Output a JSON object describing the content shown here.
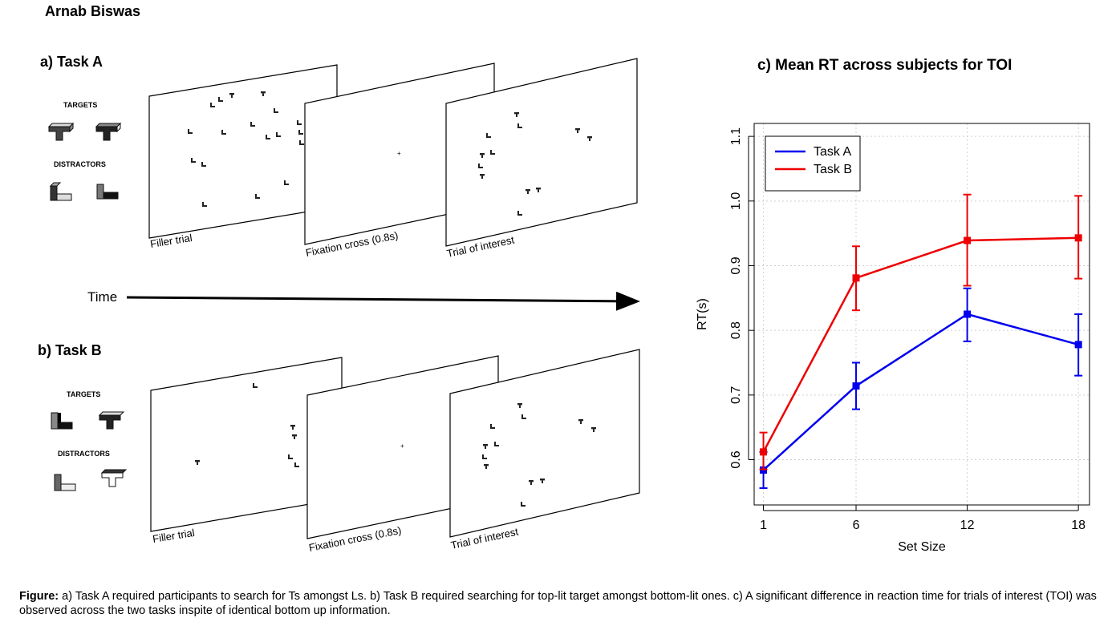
{
  "author": "Arnab Biswas",
  "panel_a": {
    "title": "a) Task A",
    "targets_label": "TARGETS",
    "distractors_label": "DISTRACTORS",
    "screens": [
      "Filler trial",
      "Fixation cross (0.8s)",
      "Trial of interest"
    ]
  },
  "time_label": "Time",
  "panel_b": {
    "title": "b) Task B",
    "targets_label": "TARGETS",
    "distractors_label": "DISTRACTORS",
    "screens": [
      "Filler trial",
      "Fixation cross (0.8s)",
      "Trial of interest"
    ]
  },
  "panel_c": {
    "title": "c) Mean RT across subjects for TOI"
  },
  "caption": {
    "lead": "Figure:",
    "text": " a) Task A required participants to search for Ts amongst Ls. b) Task B required searching for top-lit target amongst bottom-lit ones. c) A significant difference in reaction time for trials of interest (TOI) was observed across the two tasks inspite of identical bottom up information."
  },
  "chart_data": {
    "type": "line",
    "title": "c) Mean RT across subjects for TOI",
    "xlabel": "Set Size",
    "ylabel": "RT(s)",
    "x": [
      1,
      6,
      12,
      18
    ],
    "x_tick_labels": [
      "1",
      "6",
      "12",
      "18"
    ],
    "xlim": [
      0.5,
      18.6
    ],
    "ylim": [
      0.53,
      1.12
    ],
    "y_ticks": [
      0.6,
      0.7,
      0.8,
      0.9,
      1.0,
      1.1
    ],
    "y_tick_labels": [
      "0.6",
      "0.7",
      "0.8",
      "0.9",
      "1.0",
      "1.1"
    ],
    "grid": true,
    "legend_position": "top-left",
    "series": [
      {
        "name": "Task A",
        "color": "#0000ee",
        "values": [
          0.584,
          0.714,
          0.825,
          0.778
        ],
        "err_low": [
          0.556,
          0.678,
          0.783,
          0.73
        ],
        "err_high": [
          0.612,
          0.75,
          0.865,
          0.825
        ]
      },
      {
        "name": "Task B",
        "color": "#ee0000",
        "values": [
          0.612,
          0.881,
          0.939,
          0.943
        ],
        "err_low": [
          0.585,
          0.831,
          0.869,
          0.88
        ],
        "err_high": [
          0.642,
          0.93,
          1.01,
          1.008
        ]
      }
    ]
  }
}
